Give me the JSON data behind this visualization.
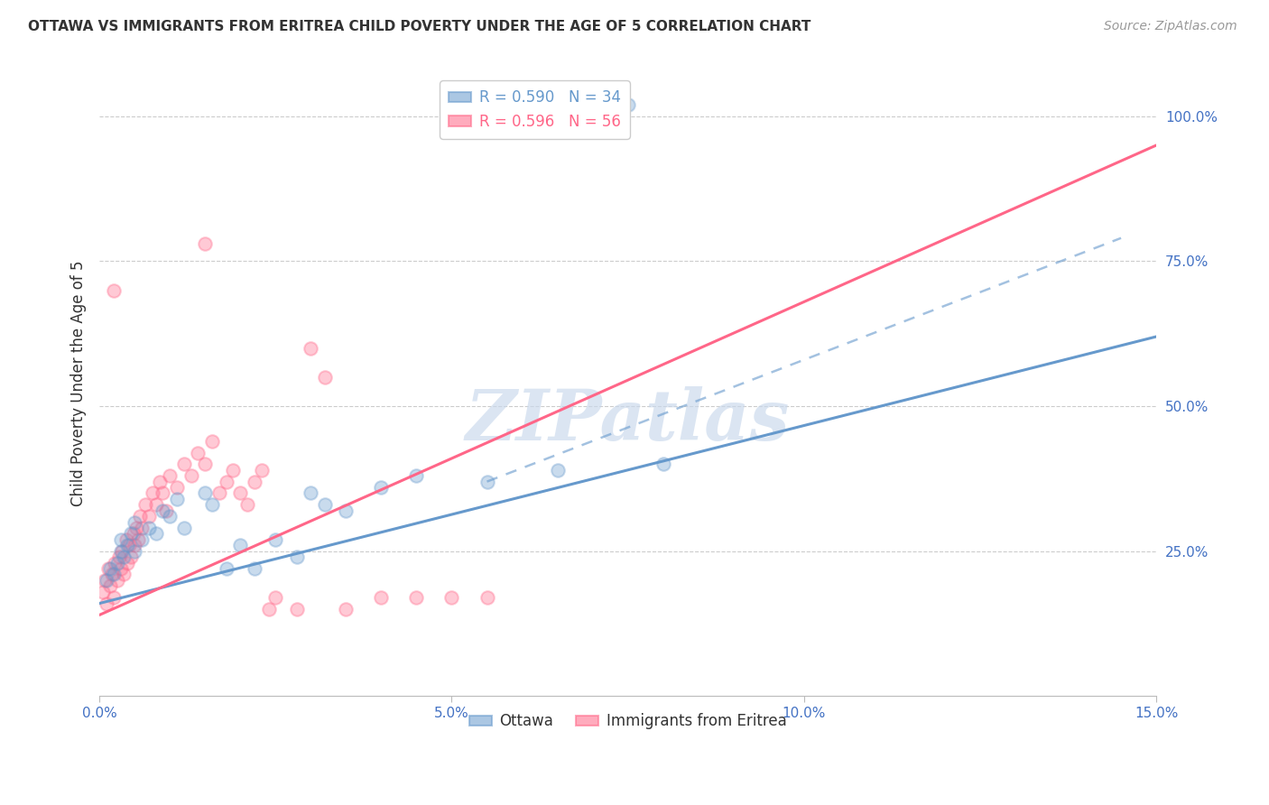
{
  "title": "OTTAWA VS IMMIGRANTS FROM ERITREA CHILD POVERTY UNDER THE AGE OF 5 CORRELATION CHART",
  "source": "Source: ZipAtlas.com",
  "ylabel": "Child Poverty Under the Age of 5",
  "x_tick_labels": [
    "0.0%",
    "5.0%",
    "10.0%",
    "15.0%"
  ],
  "x_tick_vals": [
    0.0,
    5.0,
    10.0,
    15.0
  ],
  "y_tick_labels": [
    "100.0%",
    "75.0%",
    "50.0%",
    "25.0%"
  ],
  "y_tick_vals": [
    100.0,
    75.0,
    50.0,
    25.0
  ],
  "xlim": [
    0.0,
    15.0
  ],
  "ylim": [
    0.0,
    108.0
  ],
  "ottawa_R": "0.590",
  "ottawa_N": "34",
  "eritrea_R": "0.596",
  "eritrea_N": "56",
  "ottawa_color": "#6699CC",
  "eritrea_color": "#FF6688",
  "ottawa_scatter": [
    [
      0.1,
      20.0
    ],
    [
      0.15,
      22.0
    ],
    [
      0.2,
      21.0
    ],
    [
      0.25,
      23.0
    ],
    [
      0.3,
      25.0
    ],
    [
      0.3,
      27.0
    ],
    [
      0.35,
      24.0
    ],
    [
      0.4,
      26.0
    ],
    [
      0.45,
      28.0
    ],
    [
      0.5,
      25.0
    ],
    [
      0.5,
      30.0
    ],
    [
      0.6,
      27.0
    ],
    [
      0.7,
      29.0
    ],
    [
      0.8,
      28.0
    ],
    [
      0.9,
      32.0
    ],
    [
      1.0,
      31.0
    ],
    [
      1.1,
      34.0
    ],
    [
      1.2,
      29.0
    ],
    [
      1.5,
      35.0
    ],
    [
      1.6,
      33.0
    ],
    [
      1.8,
      22.0
    ],
    [
      2.0,
      26.0
    ],
    [
      2.2,
      22.0
    ],
    [
      2.5,
      27.0
    ],
    [
      2.8,
      24.0
    ],
    [
      3.0,
      35.0
    ],
    [
      3.2,
      33.0
    ],
    [
      3.5,
      32.0
    ],
    [
      4.0,
      36.0
    ],
    [
      4.5,
      38.0
    ],
    [
      5.5,
      37.0
    ],
    [
      6.5,
      39.0
    ],
    [
      7.5,
      102.0
    ],
    [
      8.0,
      40.0
    ]
  ],
  "eritrea_scatter": [
    [
      0.05,
      18.0
    ],
    [
      0.08,
      20.0
    ],
    [
      0.1,
      16.0
    ],
    [
      0.12,
      22.0
    ],
    [
      0.15,
      19.0
    ],
    [
      0.18,
      21.0
    ],
    [
      0.2,
      17.0
    ],
    [
      0.22,
      23.0
    ],
    [
      0.25,
      20.0
    ],
    [
      0.28,
      24.0
    ],
    [
      0.3,
      22.0
    ],
    [
      0.32,
      25.0
    ],
    [
      0.35,
      21.0
    ],
    [
      0.38,
      27.0
    ],
    [
      0.4,
      23.0
    ],
    [
      0.42,
      26.0
    ],
    [
      0.45,
      24.0
    ],
    [
      0.48,
      28.0
    ],
    [
      0.5,
      26.0
    ],
    [
      0.52,
      29.0
    ],
    [
      0.55,
      27.0
    ],
    [
      0.58,
      31.0
    ],
    [
      0.6,
      29.0
    ],
    [
      0.65,
      33.0
    ],
    [
      0.7,
      31.0
    ],
    [
      0.75,
      35.0
    ],
    [
      0.8,
      33.0
    ],
    [
      0.85,
      37.0
    ],
    [
      0.9,
      35.0
    ],
    [
      0.95,
      32.0
    ],
    [
      1.0,
      38.0
    ],
    [
      1.1,
      36.0
    ],
    [
      1.2,
      40.0
    ],
    [
      1.3,
      38.0
    ],
    [
      1.4,
      42.0
    ],
    [
      1.5,
      40.0
    ],
    [
      1.6,
      44.0
    ],
    [
      1.7,
      35.0
    ],
    [
      1.8,
      37.0
    ],
    [
      1.9,
      39.0
    ],
    [
      2.0,
      35.0
    ],
    [
      2.1,
      33.0
    ],
    [
      2.2,
      37.0
    ],
    [
      2.3,
      39.0
    ],
    [
      2.4,
      15.0
    ],
    [
      2.5,
      17.0
    ],
    [
      2.8,
      15.0
    ],
    [
      3.0,
      60.0
    ],
    [
      3.2,
      55.0
    ],
    [
      3.5,
      15.0
    ],
    [
      0.2,
      70.0
    ],
    [
      1.5,
      78.0
    ],
    [
      4.0,
      17.0
    ],
    [
      5.0,
      17.0
    ],
    [
      4.5,
      17.0
    ],
    [
      5.5,
      17.0
    ]
  ],
  "ottawa_line_x": [
    0.0,
    15.0
  ],
  "ottawa_line_y": [
    16.0,
    62.0
  ],
  "eritrea_line_x": [
    0.0,
    15.0
  ],
  "eritrea_line_y": [
    14.0,
    95.0
  ],
  "dashed_line_x": [
    5.5,
    14.5
  ],
  "dashed_line_y": [
    37.0,
    79.0
  ],
  "watermark": "ZIPatlas",
  "background_color": "#FFFFFF",
  "grid_color": "#CCCCCC",
  "axis_color": "#BBBBBB",
  "title_color": "#333333",
  "ylabel_color": "#333333",
  "tick_color": "#4472C4",
  "marker_size": 110,
  "marker_alpha": 0.35,
  "marker_linewidth": 1.5
}
